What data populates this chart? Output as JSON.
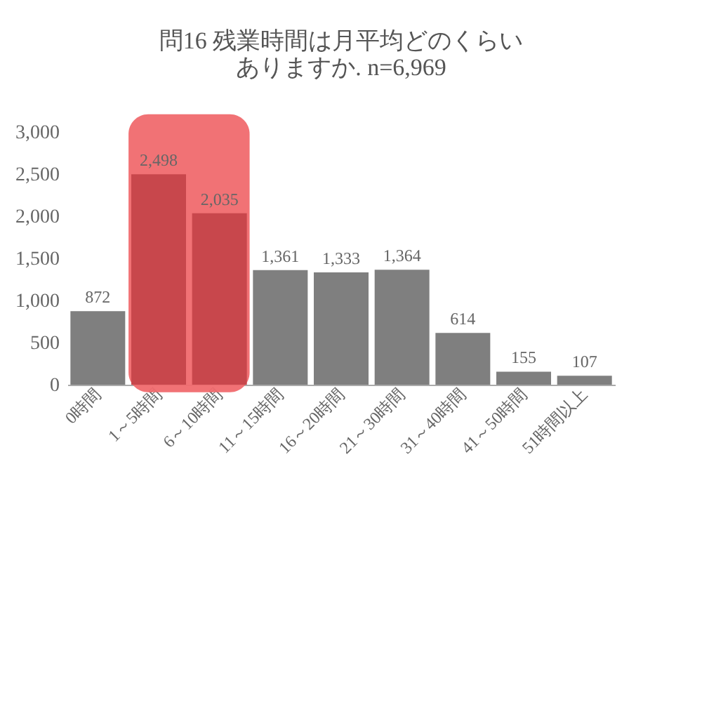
{
  "chart_data": {
    "type": "bar",
    "title": "問16 残業時間は月平均どのくらい",
    "subtitle": "ありますか. n=6,969",
    "categories": [
      "0時間",
      "1～5時間",
      "6～10時間",
      "11～15時間",
      "16～20時間",
      "21～30時間",
      "31～40時間",
      "41～50時間",
      "51時間以上"
    ],
    "values": [
      872,
      2498,
      2035,
      1361,
      1333,
      1364,
      614,
      155,
      107
    ],
    "value_labels": [
      "872",
      "2,498",
      "2,035",
      "1,361",
      "1,333",
      "1,364",
      "614",
      "155",
      "107"
    ],
    "colors": [
      "#7f7f7f",
      "#c8474c",
      "#c8474c",
      "#7f7f7f",
      "#7f7f7f",
      "#7f7f7f",
      "#7f7f7f",
      "#7f7f7f",
      "#7f7f7f"
    ],
    "ylim": [
      0,
      3000
    ],
    "yticks": [
      0,
      500,
      {
        "value": 1000,
        "label": "1,000"
      },
      {
        "value": 1500,
        "label": "1,500"
      },
      {
        "value": 2000,
        "label": "2,000"
      },
      {
        "value": 2500,
        "label": "2,500"
      },
      {
        "value": 3000,
        "label": "3,000"
      }
    ],
    "bands": [
      {
        "axis": "x",
        "from": "1～5時間",
        "to": "6～10時間",
        "color": "#f06a6e"
      }
    ],
    "data_labels": true,
    "grid": false
  }
}
